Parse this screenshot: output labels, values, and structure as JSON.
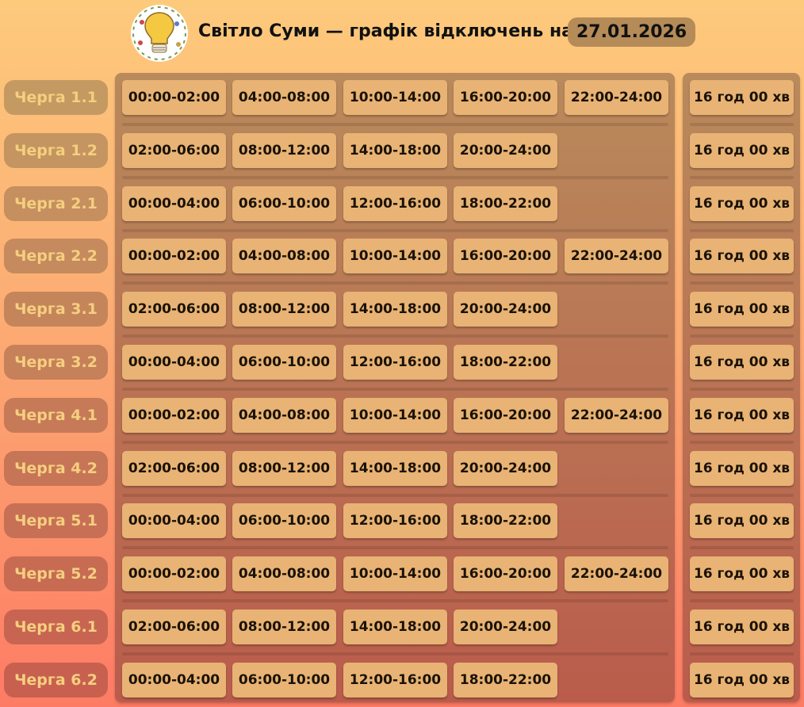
{
  "header": {
    "title": "Світло Суми — графік відключень на",
    "date": "27.01.2026",
    "logo_icon": "lightbulb-icon"
  },
  "colors": {
    "chip": "#e8b374",
    "label_text": "#f5cf7f"
  },
  "rows": [
    {
      "label": "Черга 1.1",
      "slots": [
        "00:00-02:00",
        "04:00-08:00",
        "10:00-14:00",
        "16:00-20:00",
        "22:00-24:00"
      ],
      "total": "16 год 00 хв"
    },
    {
      "label": "Черга 1.2",
      "slots": [
        "02:00-06:00",
        "08:00-12:00",
        "14:00-18:00",
        "20:00-24:00"
      ],
      "total": "16 год 00 хв"
    },
    {
      "label": "Черга 2.1",
      "slots": [
        "00:00-04:00",
        "06:00-10:00",
        "12:00-16:00",
        "18:00-22:00"
      ],
      "total": "16 год 00 хв"
    },
    {
      "label": "Черга 2.2",
      "slots": [
        "00:00-02:00",
        "04:00-08:00",
        "10:00-14:00",
        "16:00-20:00",
        "22:00-24:00"
      ],
      "total": "16 год 00 хв"
    },
    {
      "label": "Черга 3.1",
      "slots": [
        "02:00-06:00",
        "08:00-12:00",
        "14:00-18:00",
        "20:00-24:00"
      ],
      "total": "16 год 00 хв"
    },
    {
      "label": "Черга 3.2",
      "slots": [
        "00:00-04:00",
        "06:00-10:00",
        "12:00-16:00",
        "18:00-22:00"
      ],
      "total": "16 год 00 хв"
    },
    {
      "label": "Черга 4.1",
      "slots": [
        "00:00-02:00",
        "04:00-08:00",
        "10:00-14:00",
        "16:00-20:00",
        "22:00-24:00"
      ],
      "total": "16 год 00 хв"
    },
    {
      "label": "Черга 4.2",
      "slots": [
        "02:00-06:00",
        "08:00-12:00",
        "14:00-18:00",
        "20:00-24:00"
      ],
      "total": "16 год 00 хв"
    },
    {
      "label": "Черга 5.1",
      "slots": [
        "00:00-04:00",
        "06:00-10:00",
        "12:00-16:00",
        "18:00-22:00"
      ],
      "total": "16 год 00 хв"
    },
    {
      "label": "Черга 5.2",
      "slots": [
        "00:00-02:00",
        "04:00-08:00",
        "10:00-14:00",
        "16:00-20:00",
        "22:00-24:00"
      ],
      "total": "16 год 00 хв"
    },
    {
      "label": "Черга 6.1",
      "slots": [
        "02:00-06:00",
        "08:00-12:00",
        "14:00-18:00",
        "20:00-24:00"
      ],
      "total": "16 год 00 хв"
    },
    {
      "label": "Черга 6.2",
      "slots": [
        "00:00-04:00",
        "06:00-10:00",
        "12:00-16:00",
        "18:00-22:00"
      ],
      "total": "16 год 00 хв"
    }
  ]
}
